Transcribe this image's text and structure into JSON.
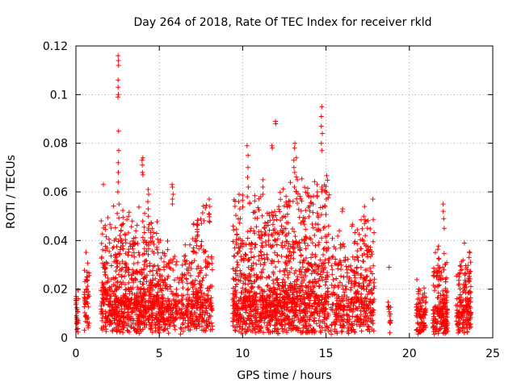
{
  "chart_data": {
    "type": "scatter",
    "title": "Day 264 of 2018, Rate Of TEC Index for receiver rkld",
    "xlabel": "GPS time / hours",
    "ylabel": "ROTI / TECUs",
    "xlim": [
      0,
      25
    ],
    "ylim": [
      0,
      0.12
    ],
    "xticks": [
      0,
      5,
      10,
      15,
      20,
      25
    ],
    "yticks": [
      0,
      0.02,
      0.04,
      0.06,
      0.08,
      0.1,
      0.12
    ],
    "xtick_labels": [
      "0",
      "5",
      "10",
      "15",
      "20",
      "25"
    ],
    "ytick_labels": [
      "0",
      "0.02",
      "0.04",
      "0.06",
      "0.08",
      "0.1",
      "0.12"
    ],
    "grid": true,
    "marker": "+",
    "color": "#ff0000",
    "clusters": [
      {
        "x_start": 0.0,
        "x_end": 0.15,
        "count": 25,
        "base": 0.012,
        "spread": 0.01
      },
      {
        "x_start": 0.5,
        "x_end": 0.8,
        "count": 50,
        "base": 0.015,
        "spread": 0.015
      },
      {
        "x_start": 1.5,
        "x_end": 1.9,
        "count": 90,
        "base": 0.015,
        "spread": 0.025
      },
      {
        "x_start": 1.9,
        "x_end": 5.0,
        "count": 700,
        "base": 0.012,
        "spread": 0.03
      },
      {
        "x_start": 5.0,
        "x_end": 7.0,
        "count": 300,
        "base": 0.01,
        "spread": 0.022
      },
      {
        "x_start": 7.0,
        "x_end": 8.2,
        "count": 220,
        "base": 0.012,
        "spread": 0.035
      },
      {
        "x_start": 9.4,
        "x_end": 12.2,
        "count": 650,
        "base": 0.012,
        "spread": 0.035
      },
      {
        "x_start": 12.2,
        "x_end": 15.2,
        "count": 700,
        "base": 0.013,
        "spread": 0.04
      },
      {
        "x_start": 15.3,
        "x_end": 16.5,
        "count": 180,
        "base": 0.01,
        "spread": 0.025
      },
      {
        "x_start": 16.5,
        "x_end": 17.9,
        "count": 250,
        "base": 0.012,
        "spread": 0.03
      },
      {
        "x_start": 18.7,
        "x_end": 18.9,
        "count": 12,
        "base": 0.008,
        "spread": 0.01
      },
      {
        "x_start": 20.4,
        "x_end": 21.0,
        "count": 90,
        "base": 0.008,
        "spread": 0.012
      },
      {
        "x_start": 21.4,
        "x_end": 22.3,
        "count": 200,
        "base": 0.009,
        "spread": 0.02
      },
      {
        "x_start": 22.8,
        "x_end": 23.7,
        "count": 180,
        "base": 0.01,
        "spread": 0.02
      }
    ],
    "peaks": [
      {
        "x": 2.55,
        "y": [
          0.116,
          0.114,
          0.112,
          0.106,
          0.103,
          0.1,
          0.099,
          0.085,
          0.077,
          0.072,
          0.068,
          0.064,
          0.06,
          0.055
        ]
      },
      {
        "x": 1.65,
        "y": [
          0.063
        ]
      },
      {
        "x": 4.0,
        "y": [
          0.074,
          0.073,
          0.071,
          0.068,
          0.067
        ]
      },
      {
        "x": 4.35,
        "y": [
          0.061,
          0.059,
          0.056,
          0.053,
          0.05
        ]
      },
      {
        "x": 5.8,
        "y": [
          0.063,
          0.062,
          0.059,
          0.057,
          0.055
        ]
      },
      {
        "x": 8.0,
        "y": [
          0.057,
          0.054,
          0.051,
          0.048
        ]
      },
      {
        "x": 9.8,
        "y": [
          0.059,
          0.056,
          0.053
        ]
      },
      {
        "x": 10.3,
        "y": [
          0.079,
          0.075,
          0.07,
          0.066,
          0.062,
          0.058
        ]
      },
      {
        "x": 11.25,
        "y": [
          0.065,
          0.062,
          0.059
        ]
      },
      {
        "x": 11.75,
        "y": [
          0.079,
          0.078
        ]
      },
      {
        "x": 11.95,
        "y": [
          0.089,
          0.088
        ]
      },
      {
        "x": 13.1,
        "y": [
          0.08,
          0.078,
          0.073,
          0.07,
          0.068,
          0.062
        ]
      },
      {
        "x": 13.25,
        "y": [
          0.074,
          0.065,
          0.06
        ]
      },
      {
        "x": 14.5,
        "y": [
          0.063,
          0.06,
          0.058
        ]
      },
      {
        "x": 14.75,
        "y": [
          0.095,
          0.091,
          0.087,
          0.084,
          0.08,
          0.077,
          0.062,
          0.06
        ]
      },
      {
        "x": 15.0,
        "y": [
          0.06,
          0.057
        ]
      },
      {
        "x": 16.0,
        "y": [
          0.053,
          0.052
        ]
      },
      {
        "x": 17.3,
        "y": [
          0.054,
          0.05,
          0.047
        ]
      },
      {
        "x": 17.8,
        "y": [
          0.057
        ]
      },
      {
        "x": 18.8,
        "y": [
          0.029,
          0.013,
          0.009,
          0.006
        ]
      },
      {
        "x": 22.05,
        "y": [
          0.055,
          0.052,
          0.049,
          0.045
        ]
      },
      {
        "x": 23.6,
        "y": [
          0.035,
          0.033
        ]
      }
    ]
  }
}
